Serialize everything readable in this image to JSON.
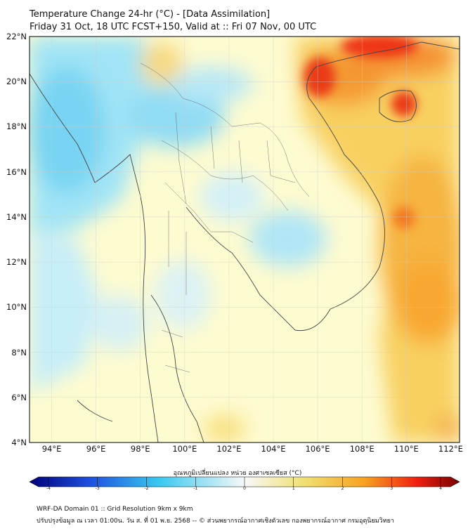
{
  "title_line1": "Temperature Change 24-hr (°C) - [Data Assimilation]",
  "title_line2": "Friday 31 Oct, 18 UTC FCST+150, Valid at :: Fri 07 Nov, 00 UTC",
  "map": {
    "lat_range": [
      4,
      22
    ],
    "lon_range": [
      93,
      112.4
    ],
    "lat_ticks": [
      {
        "value": 22,
        "label": "22°N"
      },
      {
        "value": 20,
        "label": "20°N"
      },
      {
        "value": 18,
        "label": "18°N"
      },
      {
        "value": 16,
        "label": "16°N"
      },
      {
        "value": 14,
        "label": "14°N"
      },
      {
        "value": 12,
        "label": "12°N"
      },
      {
        "value": 10,
        "label": "10°N"
      },
      {
        "value": 8,
        "label": "8°N"
      },
      {
        "value": 6,
        "label": "6°N"
      },
      {
        "value": 4,
        "label": "4°N"
      }
    ],
    "lon_ticks": [
      {
        "value": 94,
        "label": "94°E"
      },
      {
        "value": 96,
        "label": "96°E"
      },
      {
        "value": 98,
        "label": "98°E"
      },
      {
        "value": 100,
        "label": "100°E"
      },
      {
        "value": 102,
        "label": "102°E"
      },
      {
        "value": 104,
        "label": "104°E"
      },
      {
        "value": 106,
        "label": "106°E"
      },
      {
        "value": 108,
        "label": "108°E"
      },
      {
        "value": 110,
        "label": "110°E"
      },
      {
        "value": 112,
        "label": "112°E"
      }
    ],
    "colors": {
      "background": "#fdfbd0",
      "gridline": "#cccccc",
      "coast": "#444444"
    }
  },
  "colorbar": {
    "title": "อุณหภูมิเปลี่ยนแปลง หน่วย องศาเซลเซียส (°C)",
    "min": -4,
    "max": 4,
    "ticks": [
      {
        "value": -4,
        "label": "-4"
      },
      {
        "value": -3,
        "label": "-3"
      },
      {
        "value": -2,
        "label": "-2"
      },
      {
        "value": -1,
        "label": "-1"
      },
      {
        "value": 0,
        "label": "0"
      },
      {
        "value": 1,
        "label": "1"
      },
      {
        "value": 2,
        "label": "2"
      },
      {
        "value": 3,
        "label": "3"
      },
      {
        "value": 4,
        "label": "4"
      }
    ],
    "colors": [
      "#00007a",
      "#1e50e0",
      "#38c8f0",
      "#f8f8f8",
      "#f0e070",
      "#f8a020",
      "#f02010",
      "#780000"
    ]
  },
  "footer_line1": "WRF-DA Domain 01 :: Grid Resolution 9km x 9km",
  "footer_line2": "ปรับปรุงข้อมูล ณ เวลา 01:00น. วัน ส. ที่ 01 พ.ย. 2568 -- © ส่วนพยากรณ์อากาศเชิงตัวเลข กองพยากรณ์อากาศ กรมอุตุนิยมวิทยา"
}
